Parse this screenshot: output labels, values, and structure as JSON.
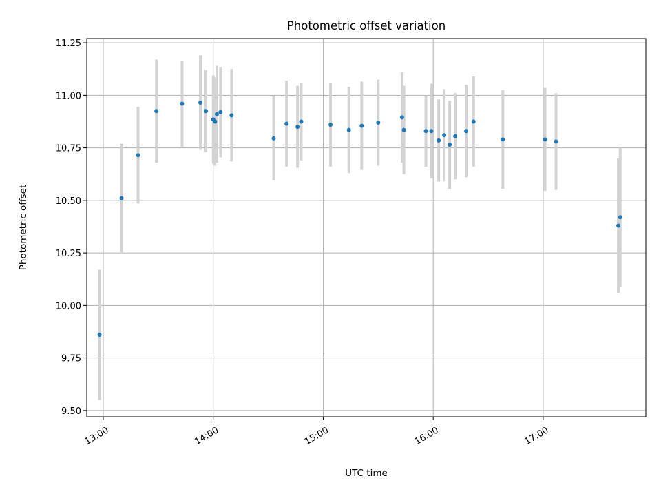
{
  "chart_data": {
    "type": "scatter",
    "title": "Photometric offset variation",
    "xlabel": "UTC time",
    "ylabel": "Photometric offset",
    "x_unit": "UTC hours",
    "xlim": [
      "12:51",
      "17:56"
    ],
    "ylim": [
      9.47,
      11.27
    ],
    "x_ticks": [
      "13:00",
      "14:00",
      "15:00",
      "16:00",
      "17:00"
    ],
    "y_ticks": [
      "9.50",
      "9.75",
      "10.00",
      "10.25",
      "10.50",
      "10.75",
      "11.00",
      "11.25"
    ],
    "grid": true,
    "series": [
      {
        "marker_color": "#1f77b4",
        "errorbar_color": "#d3d3d3",
        "points": [
          {
            "t": "12:58",
            "y": 9.86,
            "err": 0.31
          },
          {
            "t": "13:10",
            "y": 10.51,
            "err": 0.26
          },
          {
            "t": "13:19",
            "y": 10.715,
            "err": 0.23
          },
          {
            "t": "13:29",
            "y": 10.925,
            "err": 0.245
          },
          {
            "t": "13:43",
            "y": 10.96,
            "err": 0.205
          },
          {
            "t": "13:53",
            "y": 10.965,
            "err": 0.225
          },
          {
            "t": "13:56",
            "y": 10.925,
            "err": 0.195
          },
          {
            "t": "14:00",
            "y": 10.885,
            "err": 0.21
          },
          {
            "t": "14:01",
            "y": 10.875,
            "err": 0.21
          },
          {
            "t": "14:02",
            "y": 10.91,
            "err": 0.23
          },
          {
            "t": "14:04",
            "y": 10.92,
            "err": 0.215
          },
          {
            "t": "14:10",
            "y": 10.905,
            "err": 0.22
          },
          {
            "t": "14:33",
            "y": 10.795,
            "err": 0.2
          },
          {
            "t": "14:40",
            "y": 10.865,
            "err": 0.205
          },
          {
            "t": "14:46",
            "y": 10.85,
            "err": 0.195
          },
          {
            "t": "14:48",
            "y": 10.875,
            "err": 0.185
          },
          {
            "t": "15:04",
            "y": 10.86,
            "err": 0.2
          },
          {
            "t": "15:14",
            "y": 10.835,
            "err": 0.205
          },
          {
            "t": "15:21",
            "y": 10.855,
            "err": 0.21
          },
          {
            "t": "15:30",
            "y": 10.87,
            "err": 0.205
          },
          {
            "t": "15:43",
            "y": 10.895,
            "err": 0.215
          },
          {
            "t": "15:44",
            "y": 10.835,
            "err": 0.21
          },
          {
            "t": "15:56",
            "y": 10.83,
            "err": 0.17
          },
          {
            "t": "15:59",
            "y": 10.83,
            "err": 0.225
          },
          {
            "t": "16:03",
            "y": 10.785,
            "err": 0.195
          },
          {
            "t": "16:06",
            "y": 10.81,
            "err": 0.22
          },
          {
            "t": "16:09",
            "y": 10.765,
            "err": 0.21
          },
          {
            "t": "16:12",
            "y": 10.805,
            "err": 0.205
          },
          {
            "t": "16:18",
            "y": 10.83,
            "err": 0.22
          },
          {
            "t": "16:22",
            "y": 10.875,
            "err": 0.215
          },
          {
            "t": "16:38",
            "y": 10.79,
            "err": 0.235
          },
          {
            "t": "17:01",
            "y": 10.79,
            "err": 0.245
          },
          {
            "t": "17:07",
            "y": 10.78,
            "err": 0.23
          },
          {
            "t": "17:41",
            "y": 10.38,
            "err": 0.32
          },
          {
            "t": "17:42",
            "y": 10.42,
            "err": 0.33
          }
        ]
      }
    ]
  }
}
